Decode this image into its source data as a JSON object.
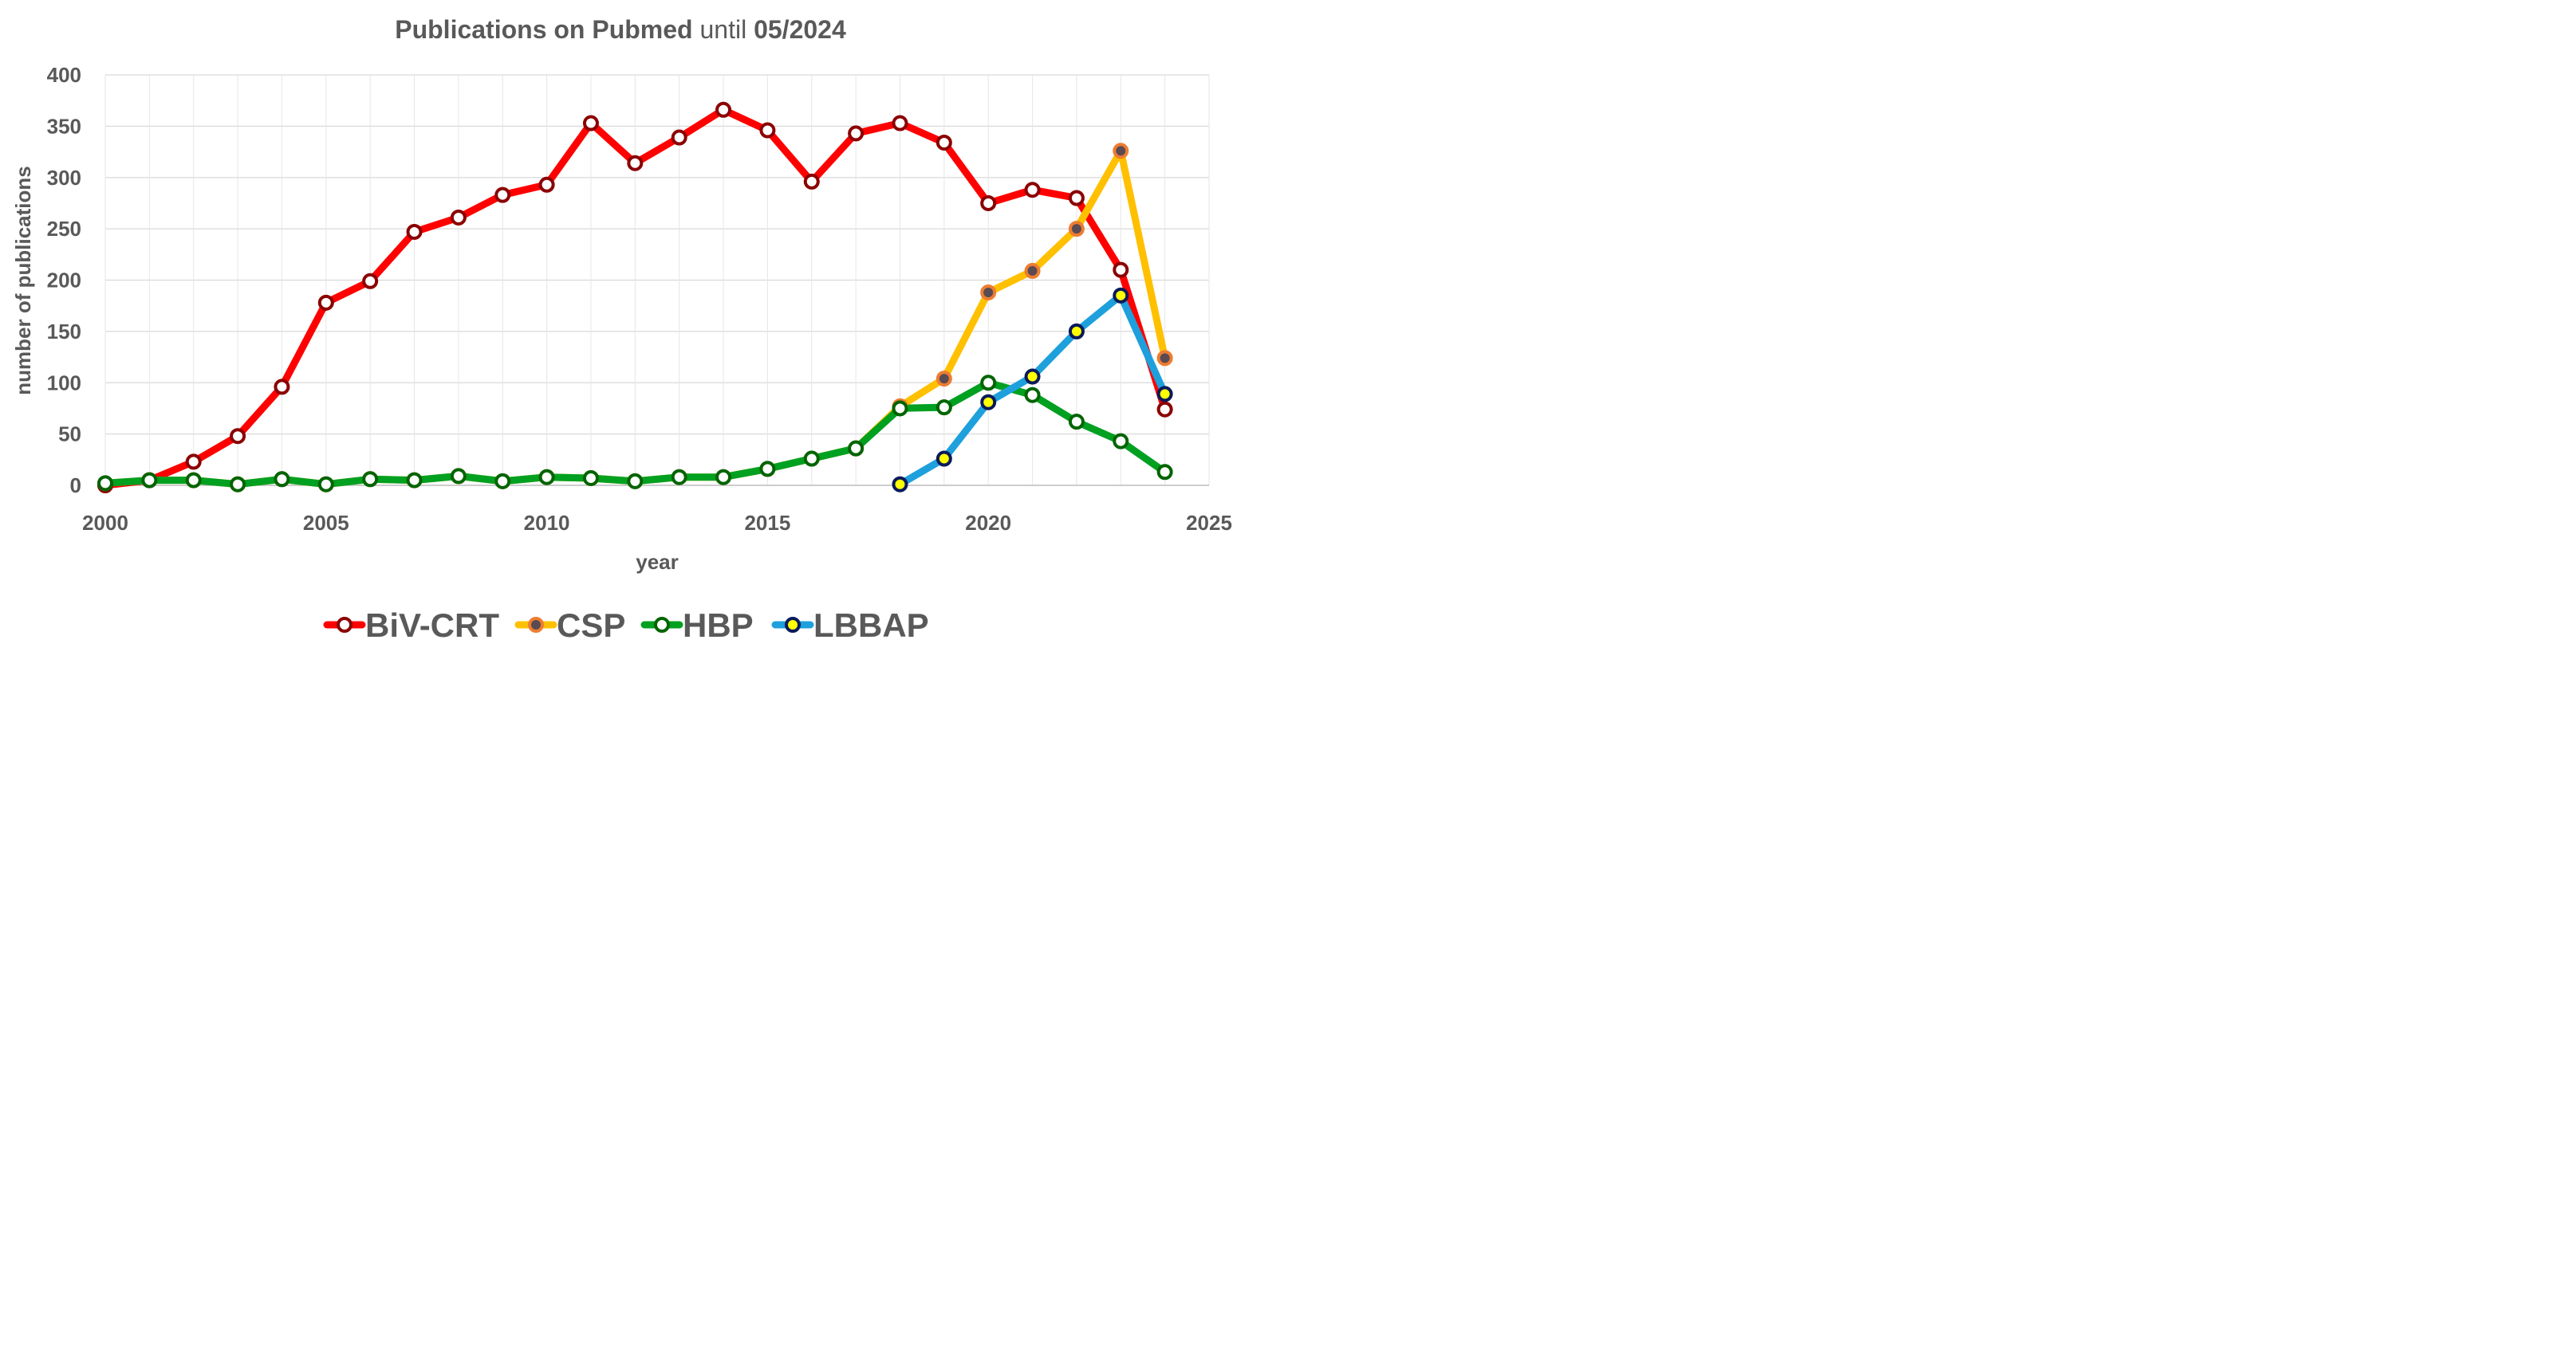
{
  "chart_data": {
    "type": "line",
    "title": {
      "part1": "Publications on Pubmed",
      "part2": " until ",
      "part3": "05/2024"
    },
    "xlabel": "year",
    "ylabel": "number of publications",
    "xlim": [
      2000,
      2025
    ],
    "ylim": [
      0,
      400
    ],
    "x_ticks": [
      2000,
      2005,
      2010,
      2015,
      2020,
      2025
    ],
    "y_ticks": [
      0,
      50,
      100,
      150,
      200,
      250,
      300,
      350,
      400
    ],
    "grid": true,
    "legend_position": "bottom",
    "series": [
      {
        "name": "BiV-CRT",
        "line_color": "#ff0000",
        "marker_fill": "#ffffff",
        "marker_edge": "#8b0000",
        "x": [
          2000,
          2001,
          2002,
          2003,
          2004,
          2005,
          2006,
          2007,
          2008,
          2009,
          2010,
          2011,
          2012,
          2013,
          2014,
          2015,
          2016,
          2017,
          2018,
          2019,
          2020,
          2021,
          2022,
          2023,
          2024
        ],
        "values": [
          0,
          5,
          23,
          48,
          96,
          178,
          199,
          247,
          261,
          283,
          293,
          353,
          314,
          339,
          366,
          346,
          296,
          343,
          353,
          334,
          275,
          288,
          280,
          210,
          74
        ]
      },
      {
        "name": "CSP",
        "line_color": "#ffc000",
        "marker_fill": "#5a4a52",
        "marker_edge": "#ed7d31",
        "x": [
          2000,
          2001,
          2002,
          2003,
          2004,
          2005,
          2006,
          2007,
          2008,
          2009,
          2010,
          2011,
          2012,
          2013,
          2014,
          2015,
          2016,
          2017,
          2018,
          2019,
          2020,
          2021,
          2022,
          2023,
          2024
        ],
        "values": [
          2,
          5,
          5,
          1,
          6,
          1,
          6,
          5,
          9,
          4,
          8,
          7,
          4,
          8,
          8,
          16,
          26,
          36,
          77,
          104,
          188,
          209,
          250,
          326,
          124
        ]
      },
      {
        "name": "HBP",
        "line_color": "#00a020",
        "marker_fill": "#ffffff",
        "marker_edge": "#006400",
        "x": [
          2000,
          2001,
          2002,
          2003,
          2004,
          2005,
          2006,
          2007,
          2008,
          2009,
          2010,
          2011,
          2012,
          2013,
          2014,
          2015,
          2016,
          2017,
          2018,
          2019,
          2020,
          2021,
          2022,
          2023,
          2024
        ],
        "values": [
          2,
          5,
          5,
          1,
          6,
          1,
          6,
          5,
          9,
          4,
          8,
          7,
          4,
          8,
          8,
          16,
          26,
          36,
          75,
          76,
          100,
          88,
          62,
          43,
          13
        ]
      },
      {
        "name": "LBBAP",
        "line_color": "#1ea0dc",
        "marker_fill": "#ffff00",
        "marker_edge": "#0a1a5a",
        "x": [
          2018,
          2019,
          2020,
          2021,
          2022,
          2023,
          2024
        ],
        "values": [
          1,
          26,
          81,
          106,
          150,
          185,
          89
        ]
      }
    ]
  }
}
